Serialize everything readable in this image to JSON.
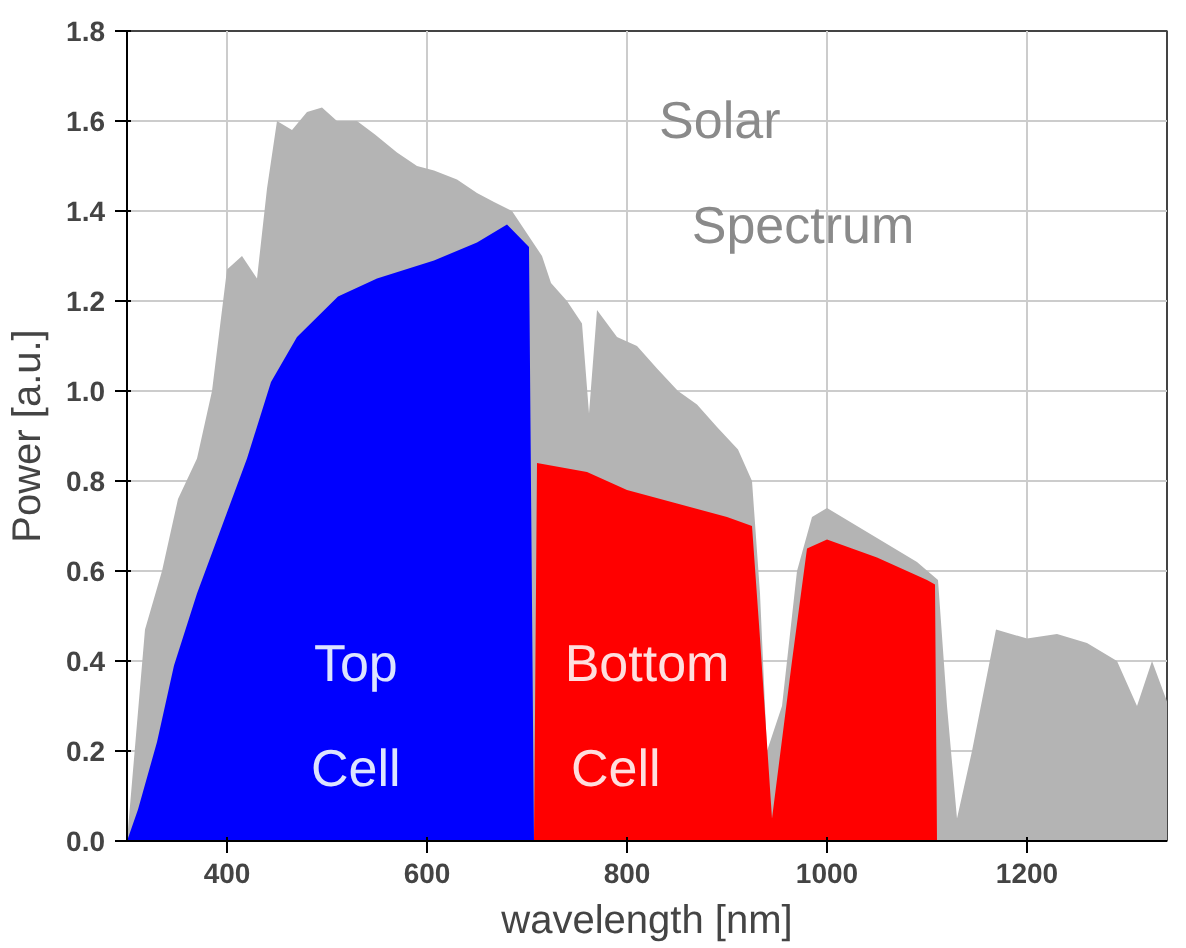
{
  "chart_data": {
    "type": "area",
    "xlabel": "wavelength [nm]",
    "ylabel": "Power [a.u.]",
    "xlim": [
      300,
      1340
    ],
    "ylim": [
      0,
      1.8
    ],
    "xticks": [
      400,
      600,
      800,
      1000,
      1200
    ],
    "yticks": [
      {
        "value": 0,
        "label": "0.0"
      },
      {
        "value": 0.2,
        "label": "0.2"
      },
      {
        "value": 0.4,
        "label": "0.4"
      },
      {
        "value": 0.6,
        "label": "0.6"
      },
      {
        "value": 0.8,
        "label": "0.8"
      },
      {
        "value": 1.0,
        "label": "1.0"
      },
      {
        "value": 1.2,
        "label": "1.2"
      },
      {
        "value": 1.4,
        "label": "1.4"
      },
      {
        "value": 1.6,
        "label": "1.6"
      },
      {
        "value": 1.8,
        "label": "1.8"
      }
    ],
    "grid": true,
    "series": [
      {
        "color": "#b4b4b4",
        "x": [
          300,
          318,
          335,
          351,
          370,
          385,
          400,
          415,
          430,
          440,
          450,
          465,
          480,
          495,
          510,
          530,
          548,
          570,
          590,
          607,
          630,
          650,
          667,
          685,
          700,
          715,
          724,
          740,
          755,
          762,
          770,
          790,
          810,
          830,
          851,
          870,
          890,
          911,
          925,
          933,
          940,
          955,
          970,
          985,
          1000,
          1030,
          1060,
          1090,
          1111,
          1120,
          1130,
          1145,
          1169,
          1200,
          1230,
          1260,
          1290,
          1310,
          1325,
          1340
        ],
        "values": [
          0,
          0.47,
          0.6,
          0.76,
          0.85,
          1.0,
          1.27,
          1.3,
          1.25,
          1.45,
          1.6,
          1.58,
          1.62,
          1.63,
          1.6,
          1.6,
          1.57,
          1.53,
          1.5,
          1.49,
          1.47,
          1.44,
          1.42,
          1.4,
          1.35,
          1.3,
          1.24,
          1.2,
          1.15,
          0.95,
          1.18,
          1.12,
          1.1,
          1.05,
          1.0,
          0.97,
          0.92,
          0.87,
          0.8,
          0.55,
          0.2,
          0.3,
          0.6,
          0.72,
          0.74,
          0.7,
          0.66,
          0.62,
          0.58,
          0.3,
          0.05,
          0.2,
          0.47,
          0.45,
          0.46,
          0.44,
          0.4,
          0.3,
          0.4,
          0.31
        ]
      },
      {
        "color": "#0000ff",
        "x": [
          300,
          311,
          330,
          347,
          370,
          400,
          420,
          444,
          470,
          511,
          550,
          607,
          650,
          680,
          702,
          707
        ],
        "values": [
          0,
          0.07,
          0.22,
          0.39,
          0.55,
          0.73,
          0.85,
          1.02,
          1.12,
          1.21,
          1.25,
          1.29,
          1.33,
          1.37,
          1.32,
          0
        ]
      },
      {
        "color": "#ff0000",
        "x": [
          707,
          710,
          760,
          800,
          850,
          900,
          925,
          933,
          945,
          965,
          980,
          1000,
          1050,
          1100,
          1108,
          1110
        ],
        "values": [
          0,
          0.84,
          0.82,
          0.78,
          0.75,
          0.72,
          0.7,
          0.45,
          0.05,
          0.4,
          0.65,
          0.67,
          0.63,
          0.58,
          0.57,
          0
        ]
      }
    ],
    "annotations": [
      "Solar",
      "Spectrum",
      "Top",
      "Cell",
      "Bottom",
      "Cell"
    ]
  }
}
